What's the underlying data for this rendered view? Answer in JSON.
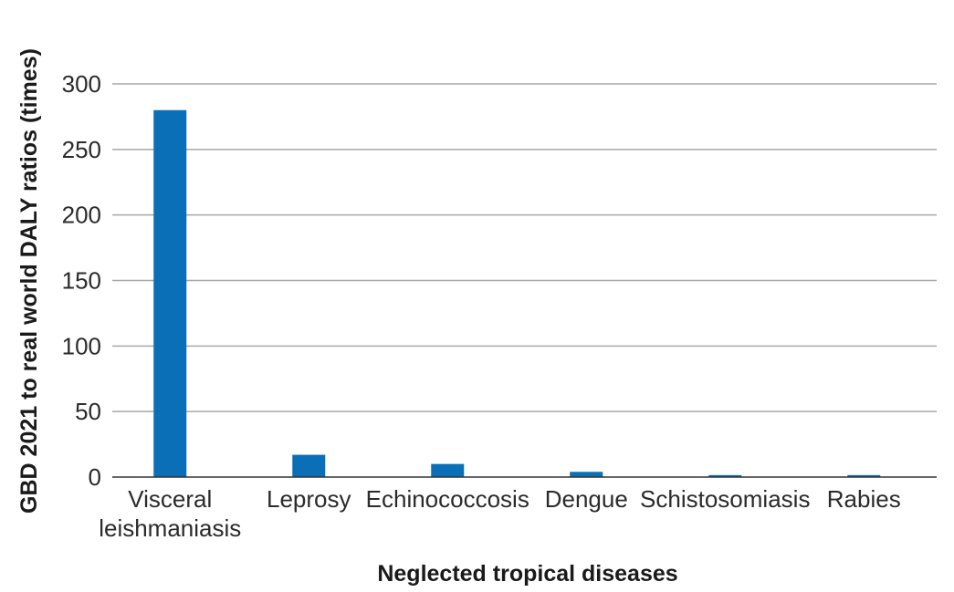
{
  "chart_data": {
    "type": "bar",
    "categories": [
      [
        "Visceral",
        "leishmaniasis"
      ],
      [
        "Leprosy"
      ],
      [
        "Echinococcosis"
      ],
      [
        "Dengue"
      ],
      [
        "Schistosomiasis"
      ],
      [
        "Rabies"
      ]
    ],
    "values": [
      280,
      17,
      10,
      4,
      1.5,
      1.5
    ],
    "xlabel": "Neglected tropical diseases",
    "ylabel": "GBD 2021 to real world DALY ratios (times)",
    "ylim": [
      0,
      300
    ],
    "yticks": [
      0,
      50,
      100,
      150,
      200,
      250,
      300
    ],
    "grid": true,
    "bar_color": "#0b6fb8"
  }
}
